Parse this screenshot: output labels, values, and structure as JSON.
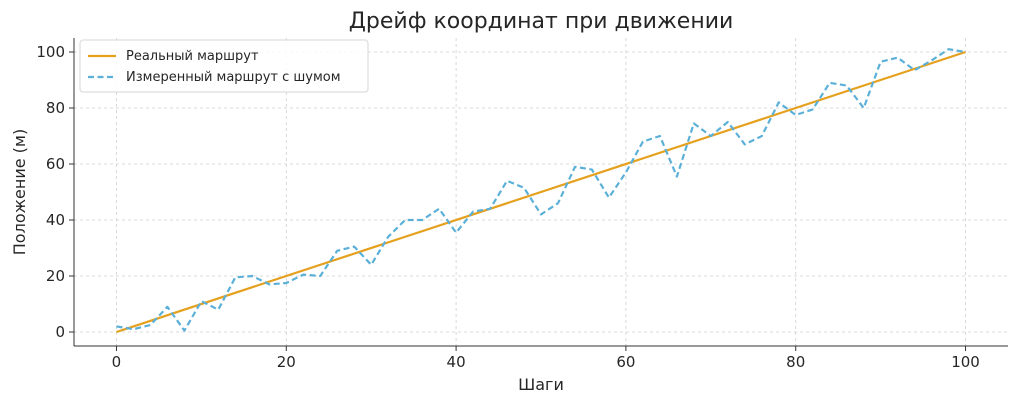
{
  "chart_data": {
    "type": "line",
    "title": "Дрейф координат при движении",
    "xlabel": "Шаги",
    "ylabel": "Положение (м)",
    "xlim": [
      -5,
      105
    ],
    "ylim": [
      -5,
      105
    ],
    "xticks": [
      0,
      20,
      40,
      60,
      80,
      100
    ],
    "yticks": [
      0,
      20,
      40,
      60,
      80,
      100
    ],
    "grid": true,
    "legend_position": "top-left",
    "series": [
      {
        "name": "Реальный маршрут",
        "color": "#E5A01E",
        "style": "solid",
        "x": [
          0,
          100
        ],
        "y": [
          0,
          100
        ]
      },
      {
        "name": "Измеренный маршрут с шумом",
        "color": "#5BB0D8",
        "style": "dashed",
        "x": [
          0,
          2,
          4,
          6,
          8,
          10,
          12,
          14,
          16,
          18,
          20,
          22,
          24,
          26,
          28,
          30,
          32,
          34,
          36,
          38,
          40,
          42,
          44,
          46,
          48,
          50,
          52,
          54,
          56,
          58,
          60,
          62,
          64,
          66,
          68,
          70,
          72,
          74,
          76,
          78,
          80,
          82,
          84,
          86,
          88,
          90,
          92,
          94,
          96,
          98,
          100
        ],
        "y": [
          2,
          1,
          2.5,
          9,
          0.5,
          11,
          8,
          19.5,
          20,
          17,
          17.5,
          20.5,
          20,
          29,
          30.5,
          24,
          34,
          40,
          40,
          44,
          35.5,
          43,
          44,
          54,
          51.5,
          42,
          46,
          59,
          58,
          48,
          57,
          68,
          70,
          55.5,
          74.5,
          70,
          75,
          67,
          70,
          82,
          77.5,
          79.5,
          89,
          88,
          80,
          96.5,
          98,
          93.5,
          97,
          101,
          100
        ]
      }
    ]
  }
}
